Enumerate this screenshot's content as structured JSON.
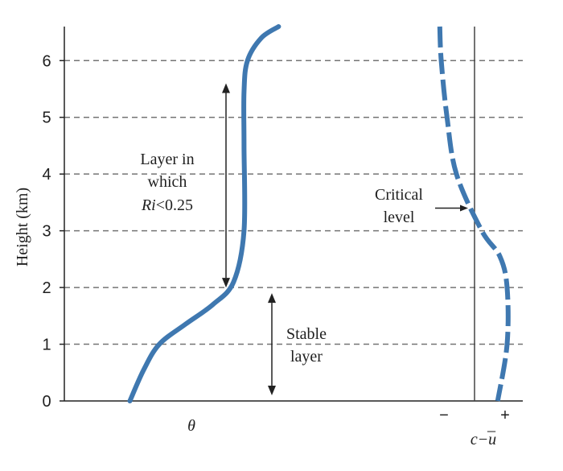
{
  "chart_data": {
    "type": "line",
    "title": "",
    "ylabel": "Height (km)",
    "ylim": [
      0,
      6.6
    ],
    "yticks": [
      0,
      1,
      2,
      3,
      4,
      5,
      6
    ],
    "grid": {
      "horizontal_dashed_lines": true,
      "levels": [
        1,
        2,
        3,
        4,
        5,
        6
      ]
    },
    "x_axis_labels": {
      "theta": "θ",
      "wind_minus": "−",
      "wind_plus": "+",
      "wind_relative": "c−u",
      "wind_relative_overbar": "_"
    },
    "series": [
      {
        "symbol": "θ",
        "style": "solid",
        "color": "#3f78b0",
        "points": [
          [
            0.1,
            0.0
          ],
          [
            0.18,
            0.55
          ],
          [
            0.27,
            1.0
          ],
          [
            0.42,
            1.35
          ],
          [
            0.58,
            1.7
          ],
          [
            0.7,
            2.1
          ],
          [
            0.76,
            3.0
          ],
          [
            0.76,
            4.5
          ],
          [
            0.76,
            5.45
          ],
          [
            0.78,
            6.0
          ],
          [
            0.86,
            6.4
          ],
          [
            0.96,
            6.6
          ]
        ]
      },
      {
        "symbol": "c−u",
        "style": "dashed",
        "color": "#3f78b0",
        "points": [
          [
            -0.48,
            6.6
          ],
          [
            -0.46,
            6.0
          ],
          [
            -0.38,
            5.0
          ],
          [
            -0.25,
            4.0
          ],
          [
            0.1,
            3.0
          ],
          [
            0.35,
            2.55
          ],
          [
            0.45,
            2.0
          ],
          [
            0.45,
            1.0
          ],
          [
            0.32,
            0.0
          ]
        ]
      }
    ],
    "annotations": {
      "layer_low_ri": {
        "label_lines": [
          "Layer in",
          "which"
        ],
        "ri_symbol": "Ri",
        "ri_relation": "<0.25",
        "range_km": [
          2.0,
          5.6
        ]
      },
      "stable_layer": {
        "label_lines": [
          "Stable",
          "layer"
        ],
        "range_km": [
          0.1,
          1.9
        ]
      },
      "critical_level": {
        "label_lines": [
          "Critical",
          "level"
        ],
        "height_km": 3.4
      }
    }
  }
}
